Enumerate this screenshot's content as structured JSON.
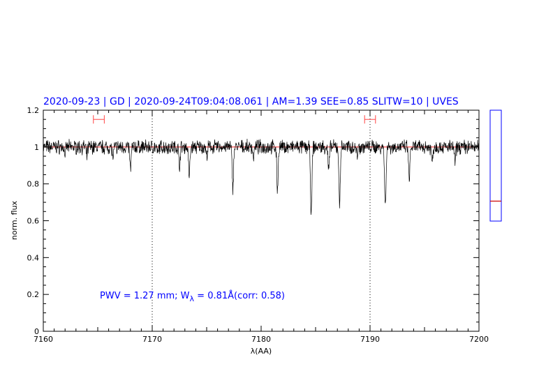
{
  "chart_data": {
    "type": "line",
    "title": "2020-09-23 | GD | 2020-09-24T09:04:08.061 | AM=1.39 SEE=0.85 SLITW=10 | UVES",
    "xlabel": "λ(AA)",
    "ylabel": "norm. flux",
    "xlim": [
      7160,
      7200
    ],
    "ylim": [
      0,
      1.2
    ],
    "xticks": [
      "7160",
      "7170",
      "7180",
      "7190",
      "7200"
    ],
    "yticks": [
      "0",
      "0.2",
      "0.4",
      "0.6",
      "0.8",
      "1",
      "1.2"
    ],
    "vlines_dotted": [
      7170,
      7190
    ],
    "continuum_level": 1.0,
    "annotation": {
      "text_prefix": "PWV  =  1.27  mm;  W",
      "subscript": "λ",
      "text_suffix": "  =  0.81Å(corr:  0.58)"
    },
    "error_bars": [
      {
        "x": [
          7164.6,
          7165.6
        ],
        "y": 1.15
      },
      {
        "x": [
          7189.5,
          7190.5
        ],
        "y": 1.15
      }
    ],
    "absorption_lines": [
      {
        "x": 7162.0,
        "depth": 0.04
      },
      {
        "x": 7164.0,
        "depth": 0.05
      },
      {
        "x": 7166.4,
        "depth": 0.06
      },
      {
        "x": 7168.0,
        "depth": 0.12
      },
      {
        "x": 7170.5,
        "depth": 0.04
      },
      {
        "x": 7172.5,
        "depth": 0.1
      },
      {
        "x": 7173.4,
        "depth": 0.16
      },
      {
        "x": 7175.0,
        "depth": 0.05
      },
      {
        "x": 7177.4,
        "depth": 0.22
      },
      {
        "x": 7179.3,
        "depth": 0.05
      },
      {
        "x": 7181.5,
        "depth": 0.23
      },
      {
        "x": 7184.6,
        "depth": 0.38
      },
      {
        "x": 7186.2,
        "depth": 0.12
      },
      {
        "x": 7187.2,
        "depth": 0.31
      },
      {
        "x": 7188.8,
        "depth": 0.04
      },
      {
        "x": 7191.4,
        "depth": 0.33
      },
      {
        "x": 7193.6,
        "depth": 0.18
      },
      {
        "x": 7195.7,
        "depth": 0.08
      },
      {
        "x": 7197.8,
        "depth": 0.08
      }
    ],
    "side_panel": {
      "ylim": [
        0,
        1.0
      ],
      "marker_value": 0.18
    },
    "colors": {
      "title": "#0000ff",
      "spectrum": "#000000",
      "continuum": "#ff0000",
      "error_bars": "#ff4444",
      "side_panel_border": "#0000ff",
      "side_panel_marker": "#cc0000"
    }
  }
}
